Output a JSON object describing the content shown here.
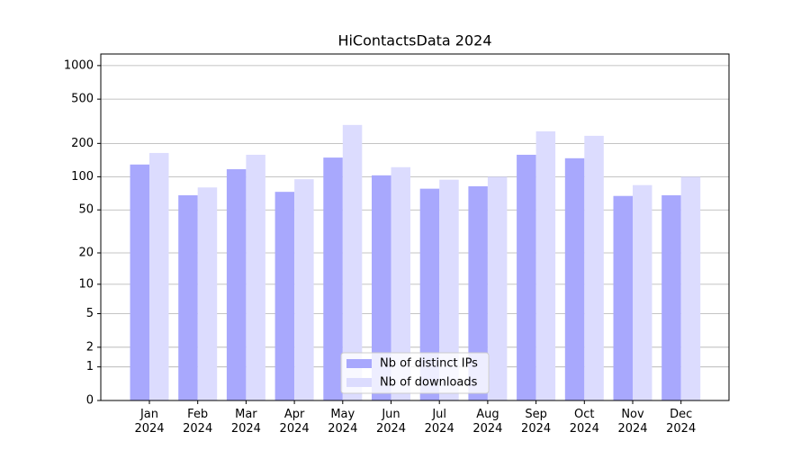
{
  "chart_data": {
    "type": "bar",
    "title": "HiContactsData 2024",
    "categories": [
      "Jan\n2024",
      "Feb\n2024",
      "Mar\n2024",
      "Apr\n2024",
      "May\n2024",
      "Jun\n2024",
      "Jul\n2024",
      "Aug\n2024",
      "Sep\n2024",
      "Oct\n2024",
      "Nov\n2024",
      "Dec\n2024"
    ],
    "series": [
      {
        "name": "Nb of distinct IPs",
        "color": "#a8a8fd",
        "values": [
          129,
          68,
          117,
          73,
          149,
          103,
          78,
          82,
          158,
          147,
          67,
          68
        ]
      },
      {
        "name": "Nb of downloads",
        "color": "#dcdcfe",
        "values": [
          164,
          80,
          158,
          95,
          293,
          122,
          94,
          100,
          257,
          234,
          84,
          100
        ]
      }
    ],
    "yscale": "log1p",
    "ylim": [
      0,
      1270
    ],
    "yticks": [
      0,
      1,
      2,
      5,
      10,
      20,
      50,
      100,
      200,
      500,
      1000
    ],
    "grid": true,
    "legend": "lower center"
  }
}
